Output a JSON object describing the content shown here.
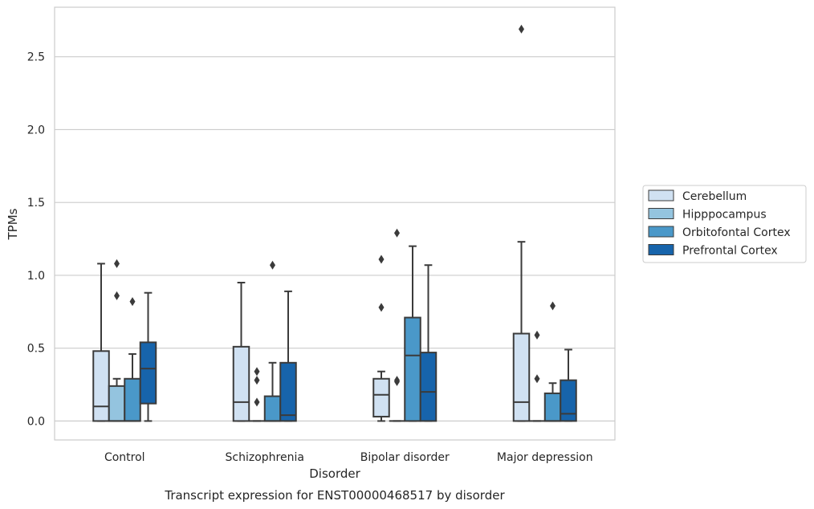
{
  "chart_data": {
    "type": "box",
    "caption": "Transcript expression for ENST00000468517 by disorder",
    "xlabel": "Disorder",
    "ylabel": "TPMs",
    "ylim": [
      -0.13,
      2.84
    ],
    "yticks": [
      "0.0",
      "0.5",
      "1.0",
      "1.5",
      "2.0",
      "2.5"
    ],
    "categories": [
      "Control",
      "Schizophrenia",
      "Bipolar disorder",
      "Major depression"
    ],
    "grid": true,
    "legend_position": "right",
    "series": [
      {
        "name": "Cerebellum",
        "color": "#d0e1f2",
        "boxes": [
          {
            "q1": 0.0,
            "median": 0.1,
            "q3": 0.48,
            "whisker_low": 0.0,
            "whisker_high": 1.08,
            "outliers": []
          },
          {
            "q1": 0.0,
            "median": 0.13,
            "q3": 0.51,
            "whisker_low": 0.0,
            "whisker_high": 0.95,
            "outliers": []
          },
          {
            "q1": 0.03,
            "median": 0.18,
            "q3": 0.29,
            "whisker_low": 0.0,
            "whisker_high": 0.34,
            "outliers": [
              0.78,
              1.11
            ]
          },
          {
            "q1": 0.0,
            "median": 0.13,
            "q3": 0.6,
            "whisker_low": 0.0,
            "whisker_high": 1.23,
            "outliers": [
              2.69
            ]
          }
        ]
      },
      {
        "name": "Hipppocampus",
        "color": "#94c4df",
        "boxes": [
          {
            "q1": 0.0,
            "median": 0.0,
            "q3": 0.24,
            "whisker_low": 0.0,
            "whisker_high": 0.29,
            "outliers": [
              0.86,
              1.08
            ]
          },
          {
            "q1": 0.0,
            "median": 0.0,
            "q3": 0.0,
            "whisker_low": 0.0,
            "whisker_high": 0.0,
            "outliers": [
              0.13,
              0.28,
              0.34
            ]
          },
          {
            "q1": 0.0,
            "median": 0.0,
            "q3": 0.0,
            "whisker_low": 0.0,
            "whisker_high": 0.0,
            "outliers": [
              0.27,
              0.28,
              1.29
            ]
          },
          {
            "q1": 0.0,
            "median": 0.0,
            "q3": 0.0,
            "whisker_low": 0.0,
            "whisker_high": 0.0,
            "outliers": [
              0.29,
              0.59
            ]
          }
        ]
      },
      {
        "name": "Orbitofontal Cortex",
        "color": "#4a98c9",
        "boxes": [
          {
            "q1": 0.0,
            "median": 0.0,
            "q3": 0.29,
            "whisker_low": 0.0,
            "whisker_high": 0.46,
            "outliers": [
              0.82
            ]
          },
          {
            "q1": 0.0,
            "median": 0.0,
            "q3": 0.17,
            "whisker_low": 0.0,
            "whisker_high": 0.4,
            "outliers": [
              1.07
            ]
          },
          {
            "q1": 0.0,
            "median": 0.45,
            "q3": 0.71,
            "whisker_low": 0.0,
            "whisker_high": 1.2,
            "outliers": []
          },
          {
            "q1": 0.0,
            "median": 0.0,
            "q3": 0.19,
            "whisker_low": 0.0,
            "whisker_high": 0.26,
            "outliers": [
              0.79
            ]
          }
        ]
      },
      {
        "name": "Prefrontal Cortex",
        "color": "#1764ab",
        "boxes": [
          {
            "q1": 0.12,
            "median": 0.36,
            "q3": 0.54,
            "whisker_low": 0.0,
            "whisker_high": 0.88,
            "outliers": []
          },
          {
            "q1": 0.0,
            "median": 0.04,
            "q3": 0.4,
            "whisker_low": 0.0,
            "whisker_high": 0.89,
            "outliers": []
          },
          {
            "q1": 0.0,
            "median": 0.2,
            "q3": 0.47,
            "whisker_low": 0.0,
            "whisker_high": 1.07,
            "outliers": []
          },
          {
            "q1": 0.0,
            "median": 0.05,
            "q3": 0.28,
            "whisker_low": 0.0,
            "whisker_high": 0.49,
            "outliers": []
          }
        ]
      }
    ]
  }
}
